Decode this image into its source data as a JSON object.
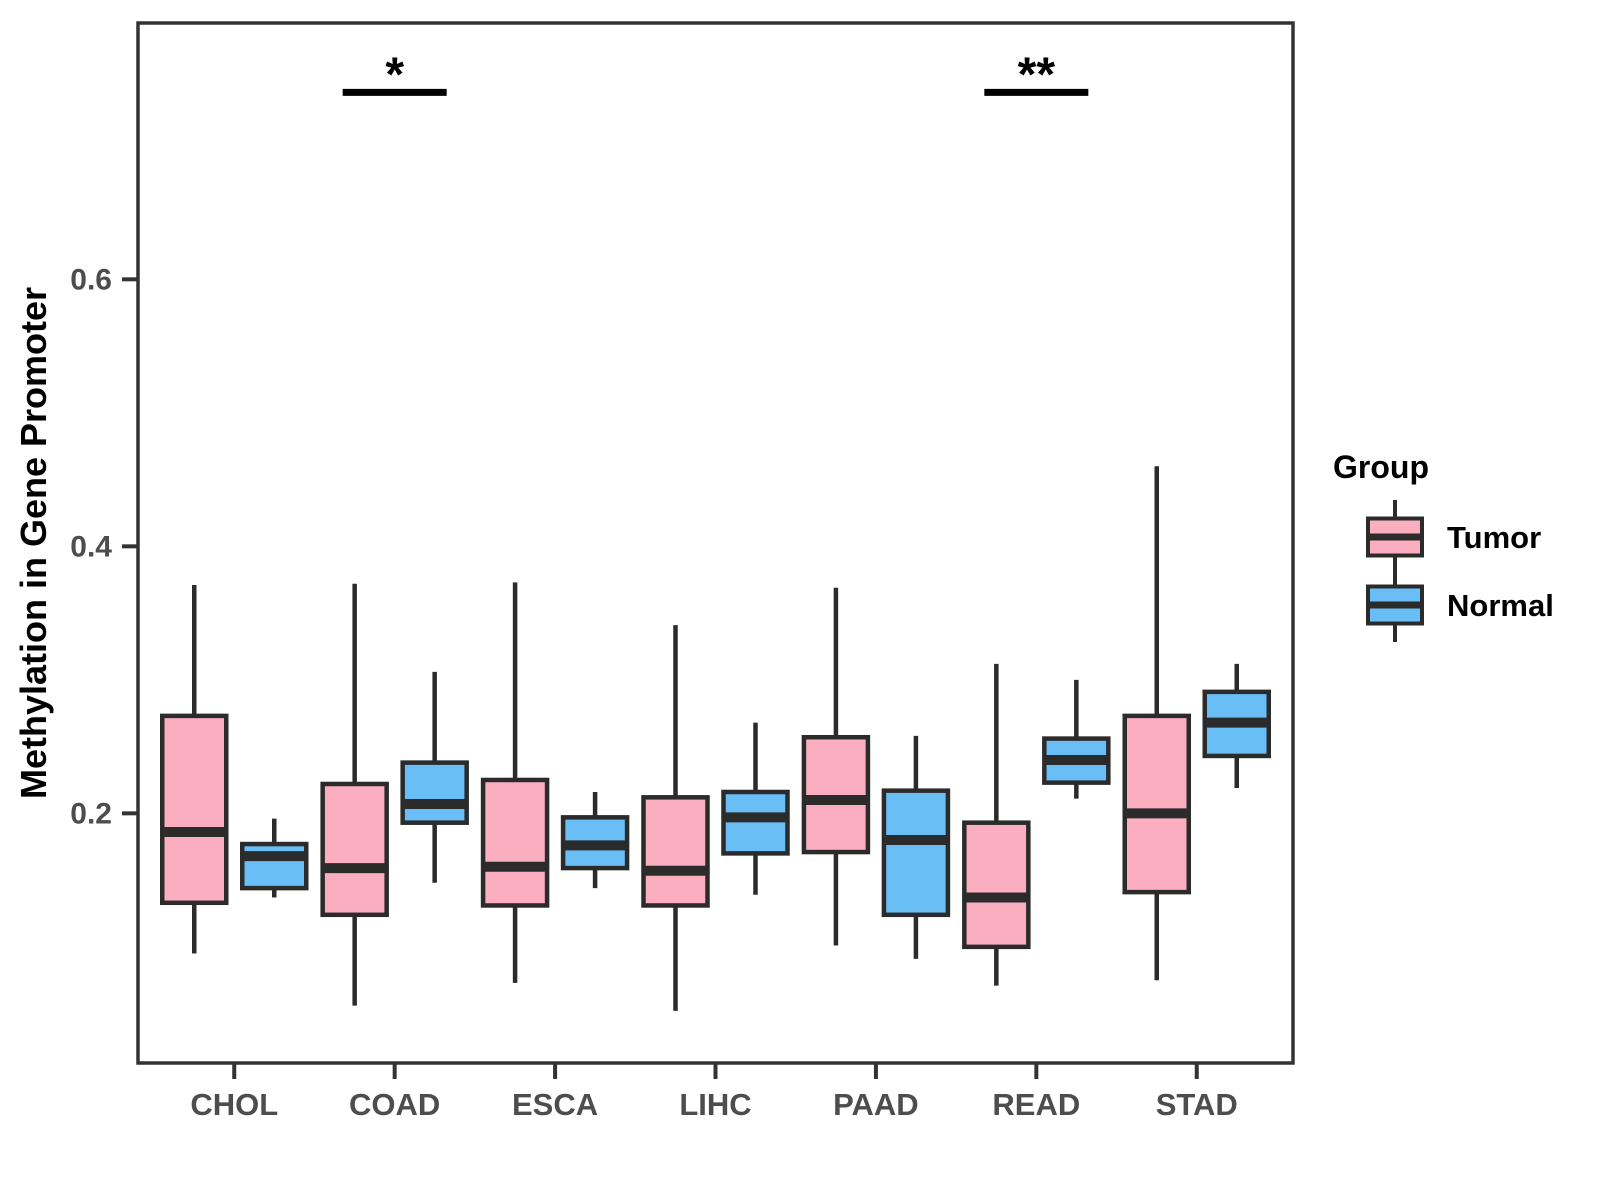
{
  "chart_data": {
    "type": "grouped_boxplot",
    "title": "",
    "xlabel": "",
    "ylabel": "Methylation in Gene Promoter",
    "categories": [
      "CHOL",
      "COAD",
      "ESCA",
      "LIHC",
      "PAAD",
      "READ",
      "STAD"
    ],
    "y_ticks": [
      "0.2",
      "0.4",
      "0.6"
    ],
    "y_tick_values": [
      0.2,
      0.4,
      0.6
    ],
    "ylim": [
      0.013,
      0.792
    ],
    "grid": false,
    "legend": {
      "title": "Group",
      "position": "right"
    },
    "series": [
      {
        "name": "Tumor",
        "fill": "#FAAEC0",
        "boxes": [
          {
            "whisker_low": 0.095,
            "q1": 0.133,
            "median": 0.186,
            "q3": 0.273,
            "whisker_high": 0.371
          },
          {
            "whisker_low": 0.056,
            "q1": 0.124,
            "median": 0.159,
            "q3": 0.222,
            "whisker_high": 0.372
          },
          {
            "whisker_low": 0.073,
            "q1": 0.131,
            "median": 0.16,
            "q3": 0.225,
            "whisker_high": 0.373
          },
          {
            "whisker_low": 0.052,
            "q1": 0.131,
            "median": 0.157,
            "q3": 0.212,
            "whisker_high": 0.341
          },
          {
            "whisker_low": 0.101,
            "q1": 0.171,
            "median": 0.21,
            "q3": 0.257,
            "whisker_high": 0.369
          },
          {
            "whisker_low": 0.071,
            "q1": 0.1,
            "median": 0.137,
            "q3": 0.193,
            "whisker_high": 0.312
          },
          {
            "whisker_low": 0.075,
            "q1": 0.141,
            "median": 0.2,
            "q3": 0.273,
            "whisker_high": 0.46
          }
        ]
      },
      {
        "name": "Normal",
        "fill": "#69BEF5",
        "boxes": [
          {
            "whisker_low": 0.137,
            "q1": 0.144,
            "median": 0.168,
            "q3": 0.177,
            "whisker_high": 0.196
          },
          {
            "whisker_low": 0.148,
            "q1": 0.193,
            "median": 0.207,
            "q3": 0.238,
            "whisker_high": 0.306
          },
          {
            "whisker_low": 0.144,
            "q1": 0.159,
            "median": 0.176,
            "q3": 0.197,
            "whisker_high": 0.216
          },
          {
            "whisker_low": 0.139,
            "q1": 0.17,
            "median": 0.197,
            "q3": 0.216,
            "whisker_high": 0.268
          },
          {
            "whisker_low": 0.091,
            "q1": 0.124,
            "median": 0.18,
            "q3": 0.217,
            "whisker_high": 0.258
          },
          {
            "whisker_low": 0.211,
            "q1": 0.223,
            "median": 0.24,
            "q3": 0.256,
            "whisker_high": 0.3
          },
          {
            "whisker_low": 0.219,
            "q1": 0.243,
            "median": 0.268,
            "q3": 0.291,
            "whisker_high": 0.312
          }
        ]
      }
    ],
    "annotations": [
      {
        "category": "COAD",
        "label": "*",
        "y": 0.74
      },
      {
        "category": "READ",
        "label": "**",
        "y": 0.74
      }
    ]
  },
  "style": {
    "background": "#FFFFFF",
    "box_stroke": "#2B2B2B",
    "axis_color": "#333333",
    "tick_label_color": "#4D4D4D",
    "title_color": "#000000"
  }
}
